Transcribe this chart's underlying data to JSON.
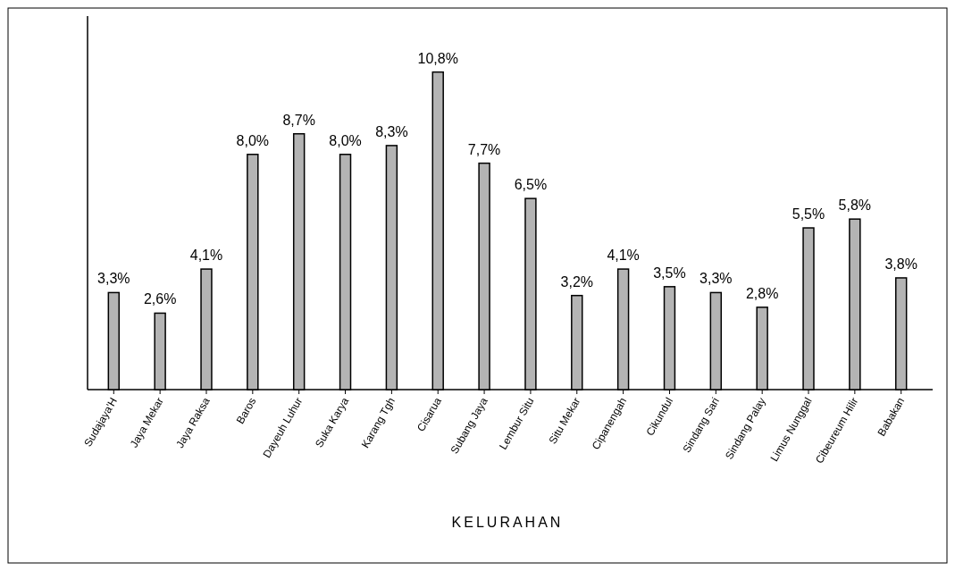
{
  "chart_data": {
    "type": "bar",
    "xlabel": "KELURAHAN",
    "categories": [
      "Sudajaya'H",
      "Jaya Mekar",
      "Jaya Raksa",
      "Baros",
      "Dayeuh Luhur",
      "Suka Karya",
      "Karang Tgh",
      "Cisarua",
      "Subang Jaya",
      "Lembur Situ",
      "Situ Mekar",
      "Cipanengah",
      "Cikundul",
      "Sindang Sari",
      "Sindang Palay",
      "Limus Nunggal",
      "Cibeureum Hilir",
      "Babakan"
    ],
    "values": [
      3.3,
      2.6,
      4.1,
      8.0,
      8.7,
      8.0,
      8.3,
      10.8,
      7.7,
      6.5,
      3.2,
      4.1,
      3.5,
      3.3,
      2.8,
      5.5,
      5.8,
      3.8
    ],
    "value_labels": [
      "3,3%",
      "2,6%",
      "4,1%",
      "8,0%",
      "8,7%",
      "8,0%",
      "8,3%",
      "10,8%",
      "7,7%",
      "6,5%",
      "3,2%",
      "4,1%",
      "3,5%",
      "3,3%",
      "2,8%",
      "5,5%",
      "5,8%",
      "3,8%"
    ],
    "color": "#b4b4b4"
  }
}
